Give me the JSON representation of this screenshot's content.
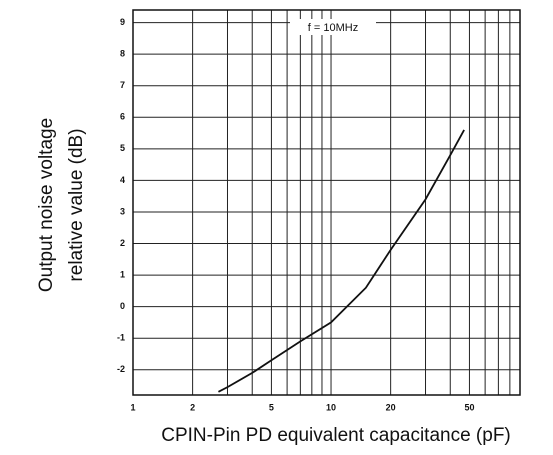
{
  "chart_data": {
    "type": "line",
    "annotation": "f = 10MHz",
    "y_label": [
      "Output noise voltage",
      "relative value (dB)"
    ],
    "x_label": "CPIN-Pin PD equivalent capacitance (pF)",
    "x": [
      2.7,
      3,
      4,
      5,
      7,
      10,
      15,
      20,
      30,
      40,
      47
    ],
    "values": [
      -2.7,
      -2.55,
      -2.1,
      -1.7,
      -1.1,
      -0.5,
      0.6,
      1.8,
      3.4,
      4.8,
      5.6
    ],
    "color": "#111111",
    "xlog": true,
    "xlim": [
      1,
      90
    ],
    "ylim": [
      -2.8,
      9.4
    ],
    "xticks": [
      1,
      2,
      5,
      10,
      20,
      50
    ],
    "xgrid": [
      1,
      2,
      3,
      4,
      5,
      6,
      7,
      8,
      9,
      10,
      20,
      30,
      40,
      50,
      60,
      70,
      80,
      90
    ],
    "yticks": [
      -2,
      -1,
      0,
      1,
      2,
      3,
      4,
      5,
      6,
      7,
      8,
      9
    ],
    "grid": true
  }
}
